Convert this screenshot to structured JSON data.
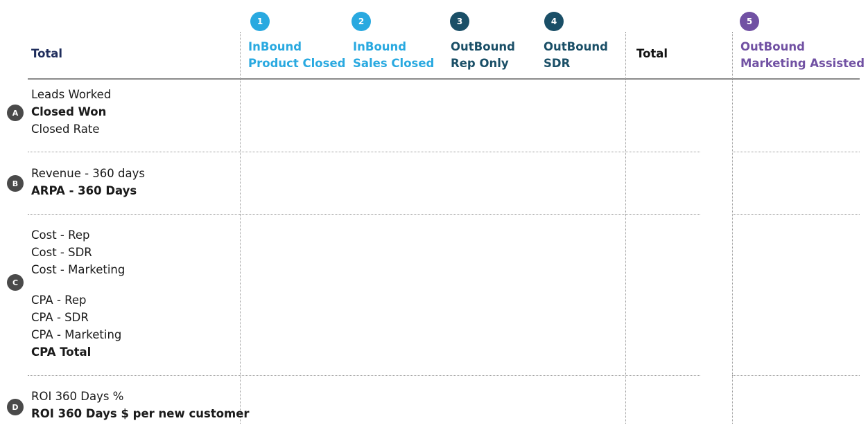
{
  "header": {
    "left_total": "Total",
    "columns": [
      {
        "number": "1",
        "line1": "InBound",
        "line2": "Product Closed",
        "color": "#29a9e0"
      },
      {
        "number": "2",
        "line1": "InBound",
        "line2": "Sales Closed",
        "color": "#29a9e0"
      },
      {
        "number": "3",
        "line1": "OutBound",
        "line2": "Rep Only",
        "color": "#1a4f67"
      },
      {
        "number": "4",
        "line1": "OutBound",
        "line2": "SDR",
        "color": "#1a4f67"
      }
    ],
    "total": "Total",
    "assisted": {
      "number": "5",
      "line1": "OutBound",
      "line2": "Marketing Assisted",
      "color": "#7151a3"
    },
    "left_total_color": "#1f2d5c"
  },
  "sections": [
    {
      "letter": "A",
      "lines": [
        "Leads Worked",
        "Closed Won",
        "Closed Rate"
      ]
    },
    {
      "letter": "B",
      "lines": [
        "Revenue - 360 days",
        "ARPA - 360 Days"
      ]
    },
    {
      "letter": "C",
      "lines": [
        "Cost - Rep",
        "Cost - SDR",
        "Cost - Marketing",
        "CPA - Rep",
        "CPA - SDR",
        "CPA - Marketing",
        "CPA Total"
      ]
    },
    {
      "letter": "D",
      "lines": [
        "ROI 360 Days %",
        "ROI 360 Days $ per new customer"
      ]
    }
  ]
}
